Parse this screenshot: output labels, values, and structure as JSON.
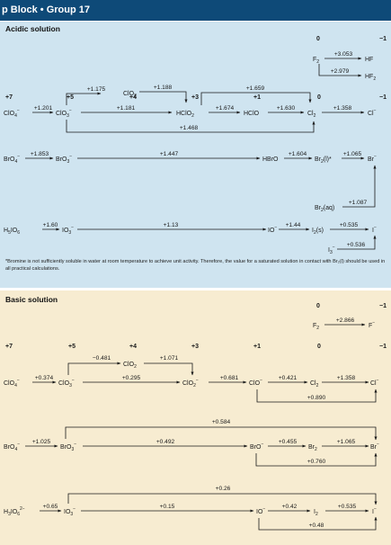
{
  "header": {
    "title": "p Block  •  Group 17"
  },
  "acid": {
    "title": "Acidic solution",
    "top_ox": {
      "zero": "0",
      "m1": "−1"
    },
    "fluorine": {
      "f2": "F",
      "f2_sub": "2",
      "hf": "HF",
      "hf2": "HF",
      "hf2_sub": "2",
      "p1": "+3.053",
      "p2": "+2.979"
    },
    "ox": {
      "p7": "+7",
      "p5": "+5",
      "p4": "+4",
      "p3": "+3",
      "p1": "+1",
      "zero": "0",
      "m1": "−1"
    },
    "cl": {
      "clo4": "ClO",
      "clo4_sub": "4",
      "clo4_sup": "−",
      "clo3": "ClO",
      "clo3_sub": "3",
      "clo3_sup": "−",
      "clo2": "ClO",
      "clo2_sub": "2",
      "hclo2": "HClO",
      "hclo2_sub": "2",
      "hclo": "HClO",
      "cl2": "Cl",
      "cl2_sub": "2",
      "clm": "Cl",
      "clm_sup": "−",
      "p_clo4_clo3": "+1.201",
      "p_clo3_clo2": "+1.175",
      "p_clo2_hclo2": "+1.188",
      "p_clo3_hclo2": "+1.181",
      "p_hclo2_hclo": "+1.674",
      "p_hclo_cl2": "+1.630",
      "p_hclo2_cl2": "+1.659",
      "p_cl2_clm": "+1.358",
      "p_clo3_cl2": "+1.468"
    },
    "br": {
      "bro4": "BrO",
      "bro4_sub": "4",
      "bro4_sup": "−",
      "bro3": "BrO",
      "bro3_sub": "3",
      "bro3_sup": "−",
      "hbro": "HBrO",
      "br2l": "Br",
      "br2l_sub": "2",
      "br2l_tail": "(l)*",
      "brm": "Br",
      "brm_sup": "−",
      "br2aq": "Br",
      "br2aq_sub": "2",
      "br2aq_tail": "(aq)",
      "p_bro4_bro3": "+1.853",
      "p_bro3_hbro": "+1.447",
      "p_hbro_br2": "+1.604",
      "p_br2_brm": "+1.065",
      "p_br2aq_brm": "+1.087"
    },
    "iodine": {
      "h5io6": "H",
      "h5io6_sub": "5",
      "h5io6_tail": "IO",
      "h5io6_sub2": "6",
      "io3": "IO",
      "io3_sub": "3",
      "io3_sup": "−",
      "io": "IO",
      "io_sup": "−",
      "i2s": "I",
      "i2s_sub": "2",
      "i2s_tail": "(s)",
      "im": "I",
      "im_sup": "−",
      "i3": "I",
      "i3_sub": "3",
      "i3_sup": "−",
      "p_h5io6_io3": "+1.60",
      "p_io3_io": "+1.13",
      "p_io_i2": "+1.44",
      "p_i2_im": "+0.535",
      "p_i3_im": "+0.536"
    }
  },
  "footnote": "*Bromine is not sufficiently soluble in water at room temperature to achieve unit activity. Therefore, the value for a saturated solution in contact with Br₂(l) should be used in all practical calculations.",
  "basic": {
    "title": "Basic solution",
    "top_ox": {
      "zero": "0",
      "m1": "−1"
    },
    "fluorine": {
      "f2": "F",
      "f2_sub": "2",
      "fm": "F",
      "fm_sup": "−",
      "p": "+2.866"
    },
    "ox": {
      "p7": "+7",
      "p5": "+5",
      "p4": "+4",
      "p3": "+3",
      "p1": "+1",
      "zero": "0",
      "m1": "−1"
    },
    "cl": {
      "clo4": "ClO",
      "clo4_sub": "4",
      "clo4_sup": "−",
      "clo3": "ClO",
      "clo3_sub": "3",
      "clo3_sup": "−",
      "clo2": "ClO",
      "clo2_sub": "2",
      "clo2m": "ClO",
      "clo2m_sub": "2",
      "clo2m_sup": "−",
      "clo": "ClO",
      "clo_sup": "−",
      "cl2": "Cl",
      "cl2_sub": "2",
      "clm": "Cl",
      "clm_sup": "−",
      "p_clo4_clo3": "+0.374",
      "p_clo3_clo2": "−0.481",
      "p_clo2_clo2m": "+1.071",
      "p_clo3_clo2m": "+0.295",
      "p_clo2m_clo": "+0.681",
      "p_clo_cl2": "+0.421",
      "p_cl2_clm": "+1.358",
      "p_clo_clm": "+0.890"
    },
    "br": {
      "bro4": "BrO",
      "bro4_sub": "4",
      "bro4_sup": "−",
      "bro3": "BrO",
      "bro3_sub": "3",
      "bro3_sup": "−",
      "bro": "BrO",
      "bro_sup": "−",
      "br2": "Br",
      "br2_sub": "2",
      "brm": "Br",
      "brm_sup": "−",
      "p_bro4_bro3": "+1.025",
      "p_bro3_bro": "+0.492",
      "p_bro_br2": "+0.455",
      "p_br2_brm": "+1.065",
      "p_bro3_brm": "+0.584",
      "p_bro_brm": "+0.760"
    },
    "iodine": {
      "h3io6": "H",
      "h3io6_sub": "3",
      "h3io6_tail": "IO",
      "h3io6_sub2": "6",
      "h3io6_sup": "2−",
      "io3": "IO",
      "io3_sub": "3",
      "io3_sup": "−",
      "io": "IO",
      "io_sup": "−",
      "i2": "I",
      "i2_sub": "2",
      "im": "I",
      "im_sup": "−",
      "p_h3io6_io3": "+0.65",
      "p_io3_io": "+0.15",
      "p_io_i2": "+0.42",
      "p_i2_im": "+0.535",
      "p_io3_im": "+0.26",
      "p_io_im": "+0.48"
    }
  }
}
